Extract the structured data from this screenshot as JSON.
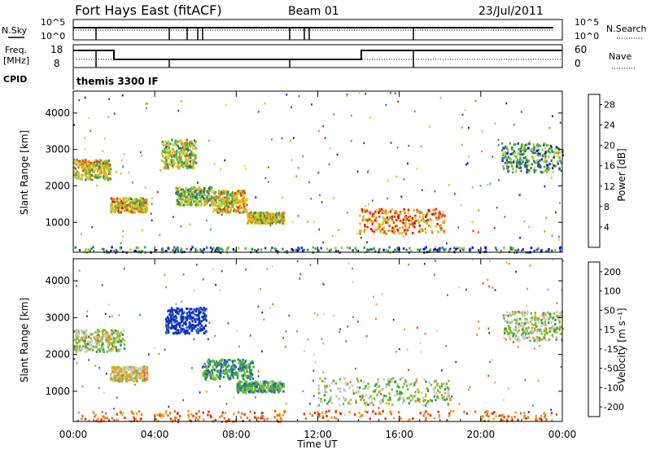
{
  "header": {
    "station": "Fort Hays East (fitACF)",
    "beam": "Beam 01",
    "date": "23/Jul/2011"
  },
  "top_panels": {
    "nsky_label": "N.Sky",
    "nsearch_label": "N.Search",
    "nsky_ticks": [
      "10^5",
      "10^0"
    ],
    "nsearch_ticks": [
      "10^5",
      "10^0"
    ],
    "freq_label": [
      "Freq.",
      "[MHz]"
    ],
    "freq_ticks": [
      "18",
      "8"
    ],
    "nave_label": "Nave",
    "nave_ticks": [
      "60",
      "0"
    ],
    "cpid_label": "CPID",
    "cpid_value": "themis 3300 IF"
  },
  "chart_data": [
    {
      "type": "heatmap",
      "title": "Power",
      "ylabel": "Slant Range [km]",
      "xlabel": "",
      "xlim": [
        "00:00",
        "24:00"
      ],
      "ylim": [
        180,
        4600
      ],
      "y_ticks": [
        1000,
        2000,
        3000,
        4000
      ],
      "x_ticks": [
        "00:00",
        "04:00",
        "08:00",
        "12:00",
        "16:00",
        "20:00",
        "00:00"
      ],
      "colorbar": {
        "label": "Power [dB]",
        "ticks": [
          4,
          8,
          12,
          16,
          20,
          24,
          28
        ],
        "range": [
          0,
          30
        ],
        "colors": [
          "#0000ff",
          "#1e3fa0",
          "#2f6e85",
          "#2f8f55",
          "#3fb548",
          "#9ccd2e",
          "#e0d030",
          "#f5b020",
          "#f08010",
          "#e84010",
          "#e01010"
        ]
      },
      "regions": [
        {
          "t": [
            0.0,
            1.8
          ],
          "r": [
            2200,
            2750
          ],
          "level": 0.6
        },
        {
          "t": [
            1.8,
            3.6
          ],
          "r": [
            1300,
            1700
          ],
          "level": 0.65
        },
        {
          "t": [
            4.3,
            6.0
          ],
          "r": [
            2500,
            3300
          ],
          "level": 0.5
        },
        {
          "t": [
            5.0,
            6.8
          ],
          "r": [
            1500,
            2000
          ],
          "level": 0.45
        },
        {
          "t": [
            6.8,
            8.5
          ],
          "r": [
            1300,
            1900
          ],
          "level": 0.6
        },
        {
          "t": [
            8.5,
            10.3
          ],
          "r": [
            1000,
            1300
          ],
          "level": 0.55
        },
        {
          "t": [
            14.0,
            18.2
          ],
          "r": [
            700,
            1400
          ],
          "level": 0.75
        },
        {
          "t": [
            21.0,
            24.0
          ],
          "r": [
            2400,
            3200
          ],
          "level": 0.35
        },
        {
          "t": [
            0.0,
            24.0
          ],
          "r": [
            200,
            350
          ],
          "level": 0.3
        }
      ]
    },
    {
      "type": "heatmap",
      "title": "Velocity",
      "ylabel": "Slant Range [km]",
      "xlabel": "Time UT",
      "xlim": [
        "00:00",
        "24:00"
      ],
      "ylim": [
        180,
        4600
      ],
      "y_ticks": [
        1000,
        2000,
        3000,
        4000
      ],
      "x_ticks": [
        "00:00",
        "04:00",
        "08:00",
        "12:00",
        "16:00",
        "20:00",
        "00:00"
      ],
      "colorbar": {
        "label": "Velocity [m s⁻¹]",
        "ticks": [
          200,
          100,
          50,
          15,
          -15,
          -50,
          -100,
          -200
        ],
        "range": [
          -250,
          250
        ],
        "colors": [
          "#1030c0",
          "#2860c0",
          "#30a040",
          "#70c030",
          "#c8c8c8",
          "#f0a020",
          "#f07010",
          "#e83010"
        ]
      },
      "regions": [
        {
          "t": [
            0.0,
            2.5
          ],
          "r": [
            2100,
            2700
          ],
          "level": 0.5
        },
        {
          "t": [
            1.8,
            3.6
          ],
          "r": [
            1300,
            1700
          ],
          "level": 0.4
        },
        {
          "t": [
            4.5,
            6.5
          ],
          "r": [
            2600,
            3300
          ],
          "level": 0.95
        },
        {
          "t": [
            6.3,
            8.8
          ],
          "r": [
            1350,
            1900
          ],
          "level": 0.7
        },
        {
          "t": [
            8.0,
            10.3
          ],
          "r": [
            1000,
            1300
          ],
          "level": 0.65
        },
        {
          "t": [
            12.0,
            18.5
          ],
          "r": [
            650,
            1400
          ],
          "level": 0.5
        },
        {
          "t": [
            21.0,
            24.0
          ],
          "r": [
            2400,
            3200
          ],
          "level": 0.5
        },
        {
          "t": [
            0.0,
            24.0
          ],
          "r": [
            200,
            500
          ],
          "level": 0.2
        }
      ]
    }
  ]
}
